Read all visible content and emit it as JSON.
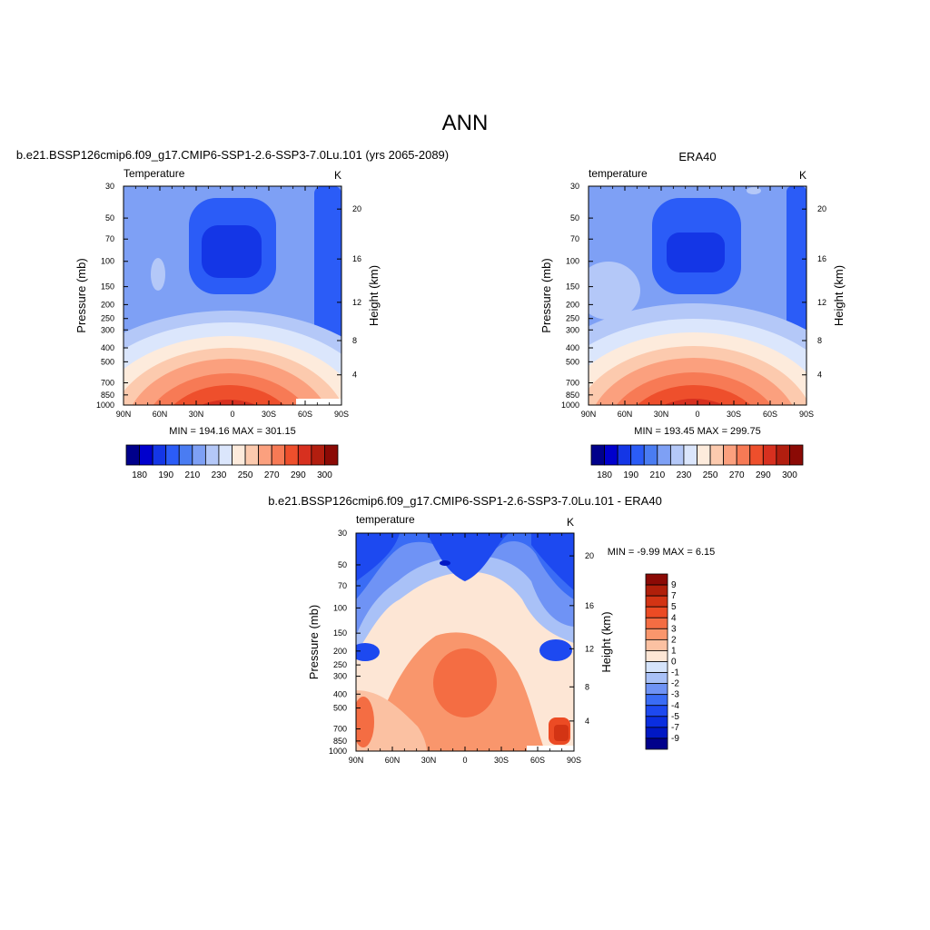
{
  "main_title": "ANN",
  "colors": {
    "abs_palette": [
      "#00008b",
      "#0000cd",
      "#1436e6",
      "#2b5cf7",
      "#4a7cf2",
      "#7ea0f5",
      "#b4c8f8",
      "#dbe6fc",
      "#fdebdc",
      "#fccaae",
      "#fba07e",
      "#f77a55",
      "#ee4f2c",
      "#d7301f",
      "#b21e0f",
      "#8b0a05"
    ],
    "diff_palette": [
      "#00008b",
      "#0018c4",
      "#0a2ee0",
      "#1d49f0",
      "#3a6cf5",
      "#6f93f5",
      "#a9c1f7",
      "#d5e4fb",
      "#fde6d5",
      "#fbc1a2",
      "#f9966c",
      "#f46d43",
      "#ec4b24",
      "#d33414",
      "#b01f0a",
      "#8b0a05"
    ]
  },
  "chart_data": [
    {
      "type": "contour",
      "name": "model",
      "title": "b.e21.BSSP126cmip6.f09_g17.CMIP6-SSP1-2.6-SSP3-7.0Lu.101 (yrs 2065-2089)",
      "subtitle_left": "Temperature",
      "subtitle_right": "K",
      "ylabel": "Pressure (mb)",
      "ylabel_right": "Height (km)",
      "x_ticks": [
        "90N",
        "60N",
        "30N",
        "0",
        "30S",
        "60S",
        "90S"
      ],
      "y_ticks": [
        "30",
        "50",
        "70",
        "100",
        "150",
        "200",
        "250",
        "300",
        "400",
        "500",
        "700",
        "850",
        "1000"
      ],
      "y_right_ticks": [
        "20",
        "16",
        "12",
        "8",
        "4"
      ],
      "xlim": [
        90,
        -90
      ],
      "ylim_mb": [
        1000,
        30
      ],
      "y_scale": "log",
      "stats": "MIN = 194.16  MAX = 301.15",
      "colorbar": {
        "orientation": "horizontal",
        "levels": [
          "180",
          "190",
          "210",
          "230",
          "250",
          "270",
          "290",
          "300"
        ],
        "bins": 16
      }
    },
    {
      "type": "contour",
      "name": "obs",
      "title": "ERA40",
      "subtitle_left": "temperature",
      "subtitle_right": "K",
      "ylabel": "Pressure (mb)",
      "ylabel_right": "Height (km)",
      "x_ticks": [
        "90N",
        "60N",
        "30N",
        "0",
        "30S",
        "60S",
        "90S"
      ],
      "y_ticks": [
        "30",
        "50",
        "70",
        "100",
        "150",
        "200",
        "250",
        "300",
        "400",
        "500",
        "700",
        "850",
        "1000"
      ],
      "y_right_ticks": [
        "20",
        "16",
        "12",
        "8",
        "4"
      ],
      "xlim": [
        90,
        -90
      ],
      "ylim_mb": [
        1000,
        30
      ],
      "y_scale": "log",
      "stats": "MIN = 193.45  MAX = 299.75",
      "colorbar": {
        "orientation": "horizontal",
        "levels": [
          "180",
          "190",
          "210",
          "230",
          "250",
          "270",
          "290",
          "300"
        ],
        "bins": 16
      }
    },
    {
      "type": "contour",
      "name": "diff",
      "title": "b.e21.BSSP126cmip6.f09_g17.CMIP6-SSP1-2.6-SSP3-7.0Lu.101 - ERA40",
      "subtitle_left": "temperature",
      "subtitle_right": "K",
      "ylabel": "Pressure (mb)",
      "ylabel_right": "Height (km)",
      "x_ticks": [
        "90N",
        "60N",
        "30N",
        "0",
        "30S",
        "60S",
        "90S"
      ],
      "y_ticks": [
        "30",
        "50",
        "70",
        "100",
        "150",
        "200",
        "250",
        "300",
        "400",
        "500",
        "700",
        "850",
        "1000"
      ],
      "y_right_ticks": [
        "20",
        "16",
        "12",
        "8",
        "4"
      ],
      "xlim": [
        90,
        -90
      ],
      "ylim_mb": [
        1000,
        30
      ],
      "y_scale": "log",
      "stats": "MIN =  -9.99  MAX =   6.15",
      "colorbar": {
        "orientation": "vertical",
        "levels": [
          "9",
          "7",
          "5",
          "4",
          "3",
          "2",
          "1",
          "0",
          "-1",
          "-2",
          "-3",
          "-4",
          "-5",
          "-7",
          "-9"
        ],
        "bins": 16
      }
    }
  ]
}
